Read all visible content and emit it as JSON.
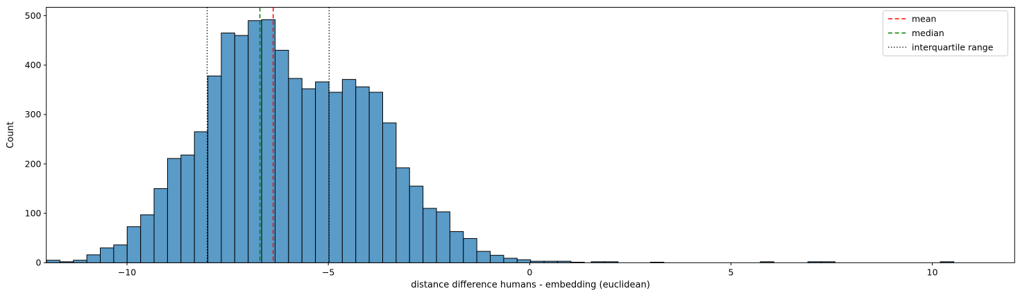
{
  "chart_data": {
    "type": "bar",
    "subtype": "histogram",
    "title": "",
    "xlabel": "distance difference humans - embedding (euclidean)",
    "ylabel": "Count",
    "xlim": [
      -12.005,
      12.046
    ],
    "ylim": [
      0,
      517
    ],
    "grid": "off",
    "legend_position": "upper right",
    "x_ticks": [
      -10,
      -5,
      0,
      5,
      10
    ],
    "x_tick_labels": [
      "−10",
      "−5",
      "0",
      "5",
      "10"
    ],
    "y_ticks": [
      0,
      100,
      200,
      300,
      400,
      500
    ],
    "y_tick_labels": [
      "0",
      "100",
      "200",
      "300",
      "400",
      "500"
    ],
    "bin_start": -12.0,
    "bin_width": 0.334,
    "counts": [
      5,
      2,
      5,
      16,
      30,
      36,
      73,
      97,
      150,
      211,
      218,
      265,
      378,
      465,
      460,
      490,
      492,
      430,
      373,
      352,
      366,
      345,
      371,
      356,
      345,
      283,
      192,
      155,
      110,
      103,
      63,
      49,
      23,
      15,
      9,
      6,
      3,
      3,
      3,
      1
    ],
    "tail_bars": [
      {
        "x": 1.53,
        "count": 2
      },
      {
        "x": 1.86,
        "count": 2
      },
      {
        "x": 3.0,
        "count": 1
      },
      {
        "x": 5.73,
        "count": 2
      },
      {
        "x": 6.91,
        "count": 2
      },
      {
        "x": 7.25,
        "count": 2
      },
      {
        "x": 10.2,
        "count": 2
      }
    ],
    "stats": {
      "mean": -6.37,
      "median": -6.7,
      "iqr_low": -8.01,
      "iqr_high": -4.98
    },
    "legend": [
      {
        "label": "mean",
        "color": "#ff0000",
        "style": "dashed"
      },
      {
        "label": "median",
        "color": "#008000",
        "style": "dashed"
      },
      {
        "label": "interquartile range",
        "color": "#000000",
        "style": "dotted"
      }
    ],
    "colors": {
      "bar_fill": "#5a9bc8",
      "bar_edge": "#000000",
      "background": "#ffffff",
      "legend_border": "#cccccc",
      "spine": "#000000"
    }
  }
}
